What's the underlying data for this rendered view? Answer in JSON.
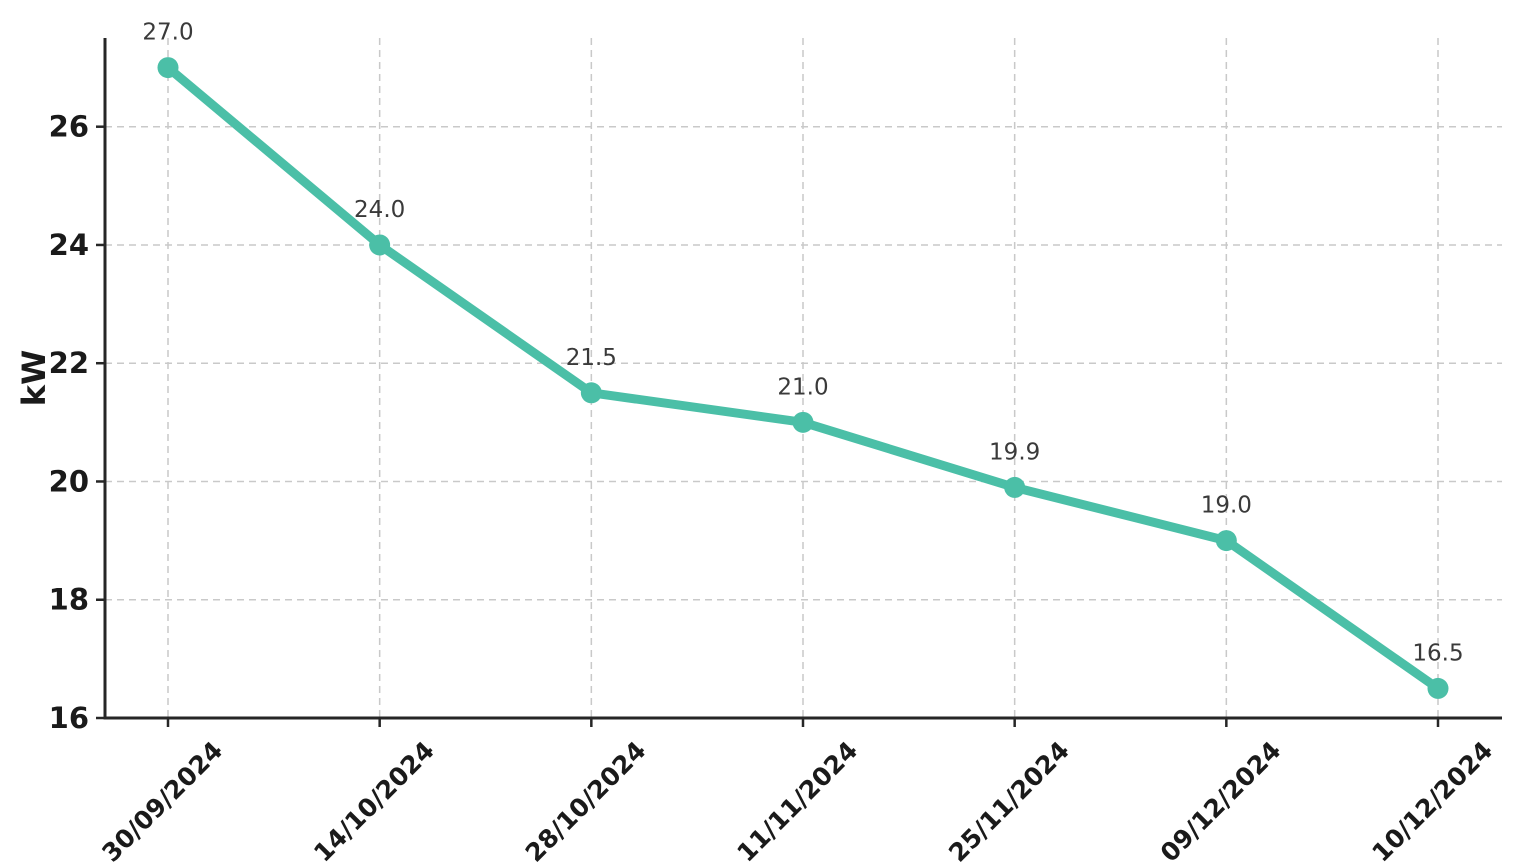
{
  "chart_data": {
    "type": "line",
    "categories": [
      "30/09/2024",
      "14/10/2024",
      "28/10/2024",
      "11/11/2024",
      "25/11/2024",
      "09/12/2024",
      "10/12/2024"
    ],
    "series": [
      {
        "name": "kW",
        "values": [
          27.0,
          24.0,
          21.5,
          21.0,
          19.9,
          19.0,
          16.5
        ],
        "point_labels": [
          "27.0",
          "24.0",
          "21.5",
          "21.0",
          "19.9",
          "19.0",
          "16.5"
        ]
      }
    ],
    "title": "",
    "xlabel": "",
    "ylabel": "kW",
    "ylim": [
      16,
      27.5
    ],
    "yticks": [
      16,
      18,
      20,
      22,
      24,
      26
    ],
    "grid": true,
    "grid_style": "dashed",
    "legend_position": "none",
    "colors": {
      "line": "#4bbfa7",
      "marker": "#4bbfa7",
      "grid": "#c9c9c9",
      "axis": "#262626",
      "tick_label": "#1a1a1a",
      "point_label": "#3a3a3a",
      "background": "#ffffff"
    }
  }
}
